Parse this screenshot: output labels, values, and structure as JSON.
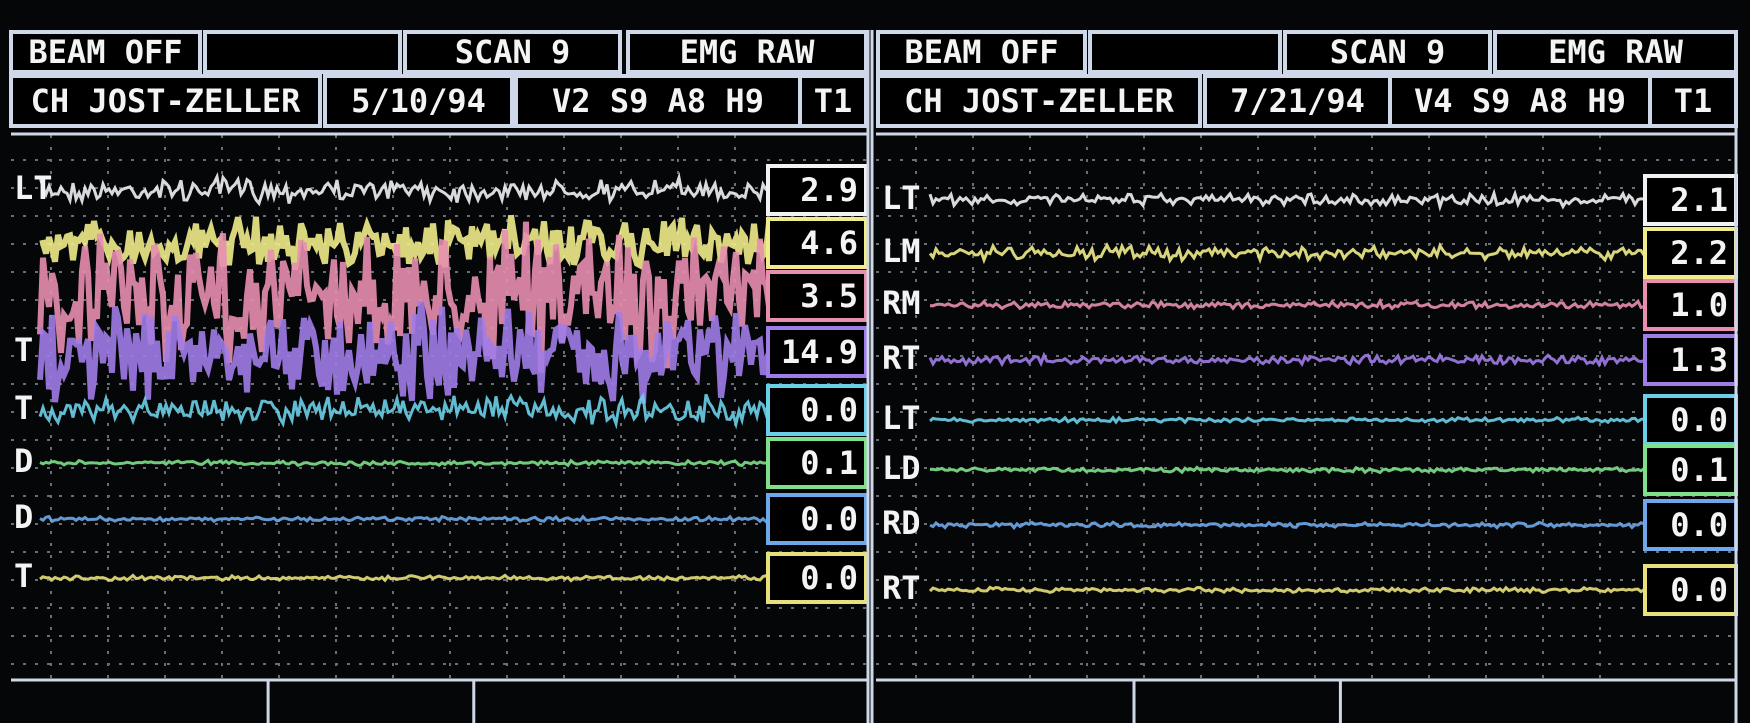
{
  "panels": [
    {
      "header": {
        "beam": "BEAM OFF",
        "scan": "SCAN 9",
        "mode": "EMG RAW",
        "patient": "CH JOST-ZELLER",
        "date": "5/10/94",
        "params": "V2 S9 A8 H9",
        "trace": "T1"
      },
      "channels": [
        {
          "label": "LT",
          "value": "2.9"
        },
        {
          "value": "4.6"
        },
        {
          "value": "3.5"
        },
        {
          "label": "T",
          "value": "14.9"
        },
        {
          "label": "T",
          "value": "0.0"
        },
        {
          "label": "D",
          "value": "0.1"
        },
        {
          "label": "D",
          "value": "0.0"
        },
        {
          "label": "T",
          "value": "0.0"
        }
      ]
    },
    {
      "header": {
        "beam": "BEAM OFF",
        "scan": "SCAN 9",
        "mode": "EMG RAW",
        "patient": "CH JOST-ZELLER",
        "date": "7/21/94",
        "params": "V4 S9 A8 H9",
        "trace": "T1"
      },
      "channels": [
        {
          "label": "LT",
          "value": "2.1"
        },
        {
          "label": "LM",
          "value": "2.2"
        },
        {
          "label": "RM",
          "value": "1.0"
        },
        {
          "label": "RT",
          "value": "1.3"
        },
        {
          "label": "LT",
          "value": "0.0"
        },
        {
          "label": "LD",
          "value": "0.1"
        },
        {
          "label": "RD",
          "value": "0.0"
        },
        {
          "label": "RT",
          "value": "0.0"
        }
      ]
    }
  ]
}
